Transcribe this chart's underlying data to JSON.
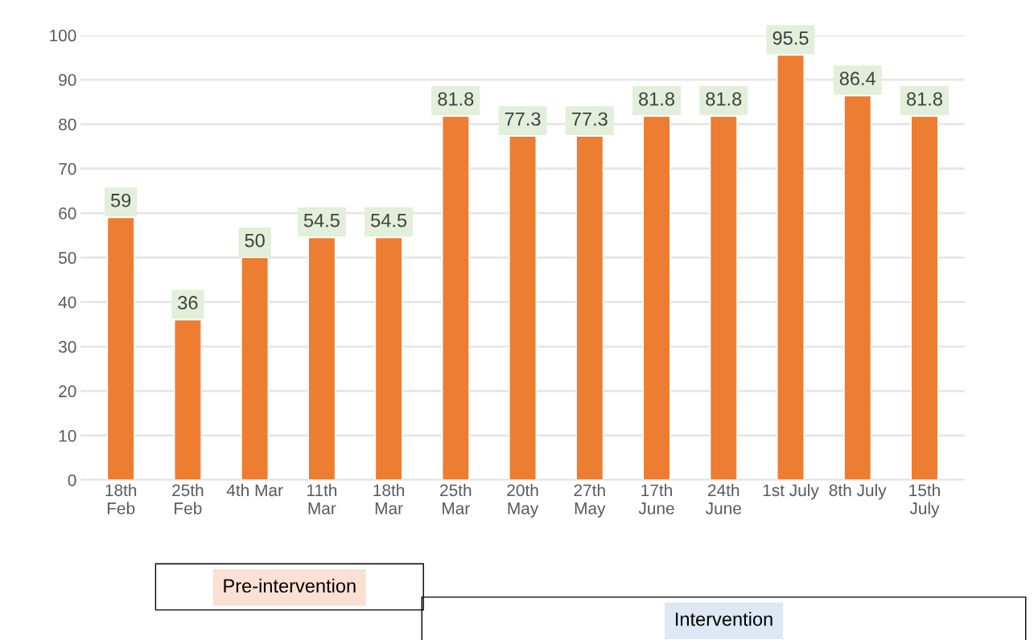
{
  "chart_data": {
    "type": "bar",
    "categories": [
      "18th\nFeb",
      "25th\nFeb",
      "4th Mar",
      "11th\nMar",
      "18th\nMar",
      "25th\nMar",
      "20th\nMay",
      "27th\nMay",
      "17th\nJune",
      "24th\nJune",
      "1st July",
      "8th July",
      "15th\nJuly"
    ],
    "values": [
      59,
      36,
      50,
      54.5,
      54.5,
      81.8,
      77.3,
      77.3,
      81.8,
      81.8,
      95.5,
      86.4,
      81.8
    ],
    "color": "#ed7d31",
    "ylim": [
      0,
      100
    ],
    "yticks": [
      0,
      10,
      20,
      30,
      40,
      50,
      60,
      70,
      80,
      90,
      100
    ],
    "grid": "y",
    "data_labels": true,
    "annotations": [
      "Pre-intervention",
      "Intervention"
    ]
  }
}
